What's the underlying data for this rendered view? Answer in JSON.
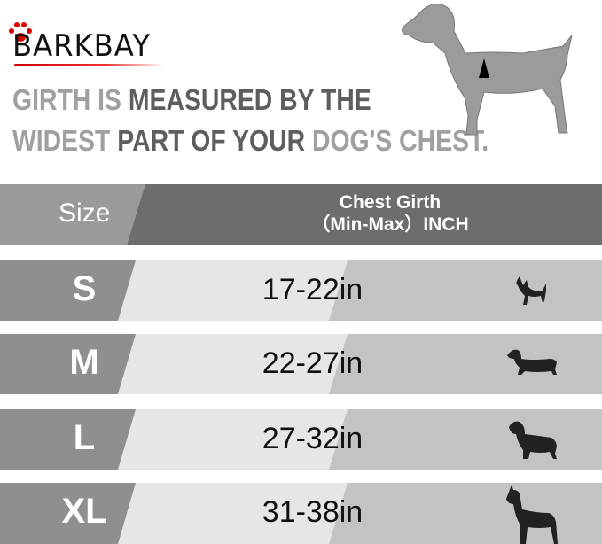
{
  "brand": {
    "logo_text": "BARKBAY",
    "accent": "#cc0000"
  },
  "headline": {
    "line1": [
      {
        "text": "GIRTH ",
        "tone": "light"
      },
      {
        "text": "IS ",
        "tone": "light"
      },
      {
        "text": "MEASURED BY THE",
        "tone": "dark"
      }
    ],
    "line2": [
      {
        "text": "WIDEST ",
        "tone": "light"
      },
      {
        "text": "PART OF YOUR ",
        "tone": "dark"
      },
      {
        "text": "DOG'S CHEST.",
        "tone": "light"
      }
    ]
  },
  "table": {
    "header": {
      "size": "Size",
      "girth_line1": "Chest Girth",
      "girth_line2": "（Min-Max）INCH"
    },
    "rows": [
      {
        "size": "S",
        "girth": "17-22in",
        "dog_icon": "chihuahua-icon"
      },
      {
        "size": "M",
        "girth": "22-27in",
        "dog_icon": "dachshund-icon"
      },
      {
        "size": "L",
        "girth": "27-32in",
        "dog_icon": "labrador-icon"
      },
      {
        "size": "XL",
        "girth": "31-38in",
        "dog_icon": "great-dane-icon"
      }
    ]
  }
}
